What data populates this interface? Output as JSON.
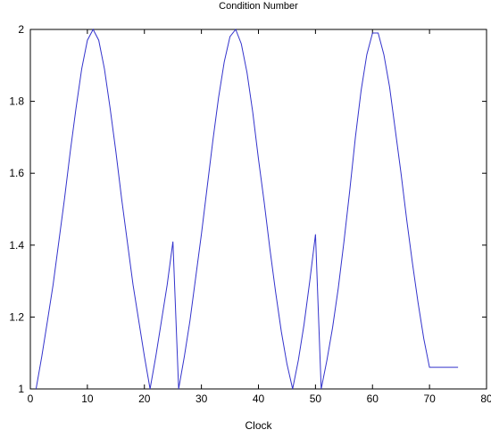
{
  "chart_data": {
    "type": "line",
    "title": "Condition Number",
    "xlabel": "Clock",
    "ylabel": "",
    "xlim": [
      0,
      80
    ],
    "ylim": [
      1,
      2
    ],
    "xticks": [
      0,
      10,
      20,
      30,
      40,
      50,
      60,
      70,
      80
    ],
    "yticks": [
      1,
      1.2,
      1.4,
      1.6,
      1.8,
      2
    ],
    "grid": false,
    "line_color": "#3333cc",
    "series": [
      {
        "name": "",
        "x": [
          1,
          2,
          3,
          4,
          5,
          6,
          7,
          8,
          9,
          10,
          11,
          12,
          13,
          14,
          15,
          16,
          17,
          18,
          19,
          20,
          21,
          22,
          23,
          24,
          25,
          26,
          27,
          28,
          29,
          30,
          31,
          32,
          33,
          34,
          35,
          36,
          37,
          38,
          39,
          40,
          41,
          42,
          43,
          44,
          45,
          46,
          47,
          48,
          49,
          50,
          51,
          52,
          53,
          54,
          55,
          56,
          57,
          58,
          59,
          60,
          61,
          62,
          63,
          64,
          65,
          66,
          67,
          68,
          69,
          70,
          71,
          72,
          73,
          74,
          75
        ],
        "y": [
          1.0,
          1.09,
          1.19,
          1.29,
          1.41,
          1.53,
          1.66,
          1.78,
          1.89,
          1.97,
          2.0,
          1.97,
          1.89,
          1.78,
          1.66,
          1.53,
          1.41,
          1.29,
          1.19,
          1.09,
          1.0,
          1.09,
          1.19,
          1.29,
          1.41,
          1.0,
          1.09,
          1.19,
          1.31,
          1.43,
          1.56,
          1.69,
          1.81,
          1.91,
          1.98,
          2.0,
          1.96,
          1.88,
          1.77,
          1.64,
          1.52,
          1.39,
          1.27,
          1.16,
          1.07,
          1.0,
          1.08,
          1.18,
          1.3,
          1.43,
          1.0,
          1.08,
          1.17,
          1.28,
          1.41,
          1.55,
          1.7,
          1.83,
          1.93,
          1.99,
          1.99,
          1.93,
          1.84,
          1.72,
          1.6,
          1.47,
          1.35,
          1.24,
          1.14,
          1.06,
          1.06,
          1.06,
          1.06,
          1.06,
          1.06
        ]
      }
    ]
  }
}
